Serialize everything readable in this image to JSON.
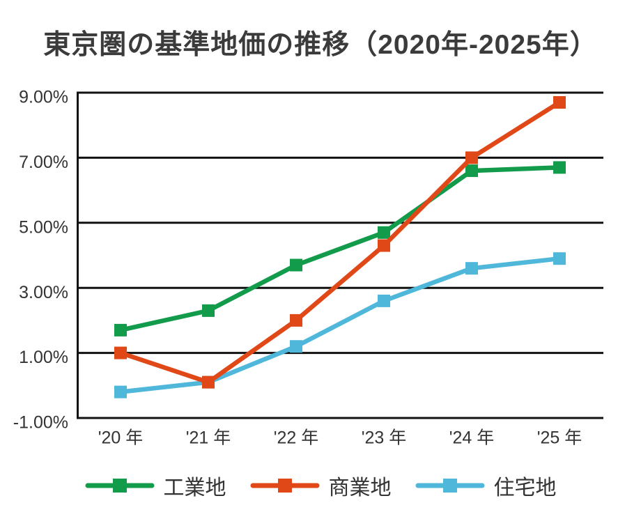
{
  "title": "東京圏の基準地価の推移（2020年-2025年）",
  "chart_data": {
    "type": "line",
    "title": "東京圏の基準地価の推移（2020年-2025年）",
    "categories": [
      "'20 年",
      "'21 年",
      "'22 年",
      "'23 年",
      "'24 年",
      "'25 年"
    ],
    "series": [
      {
        "key": "industrial",
        "name": "工業地",
        "color": "#129b4b",
        "values": [
          1.7,
          2.3,
          3.7,
          4.7,
          6.6,
          6.7
        ]
      },
      {
        "key": "commercial",
        "name": "商業地",
        "color": "#e04818",
        "values": [
          1.0,
          0.1,
          2.0,
          4.3,
          7.0,
          8.7
        ]
      },
      {
        "key": "residential",
        "name": "住宅地",
        "color": "#4fb7da",
        "values": [
          -0.2,
          0.1,
          1.2,
          2.6,
          3.6,
          3.9
        ]
      }
    ],
    "y_ticks": [
      {
        "value": 9,
        "label": "9.00%"
      },
      {
        "value": 7,
        "label": "7.00%"
      },
      {
        "value": 5,
        "label": "5.00%"
      },
      {
        "value": 3,
        "label": "3.00%"
      },
      {
        "value": 1,
        "label": "1.00%"
      },
      {
        "value": -1,
        "label": "-1.00%"
      }
    ],
    "ylim": [
      -1,
      9
    ],
    "xlabel": "",
    "ylabel": "",
    "unit": "%",
    "grid": "horizontal",
    "marker": "square",
    "legend_position": "bottom",
    "axis_color": "#111111",
    "text_color": "#333333"
  }
}
